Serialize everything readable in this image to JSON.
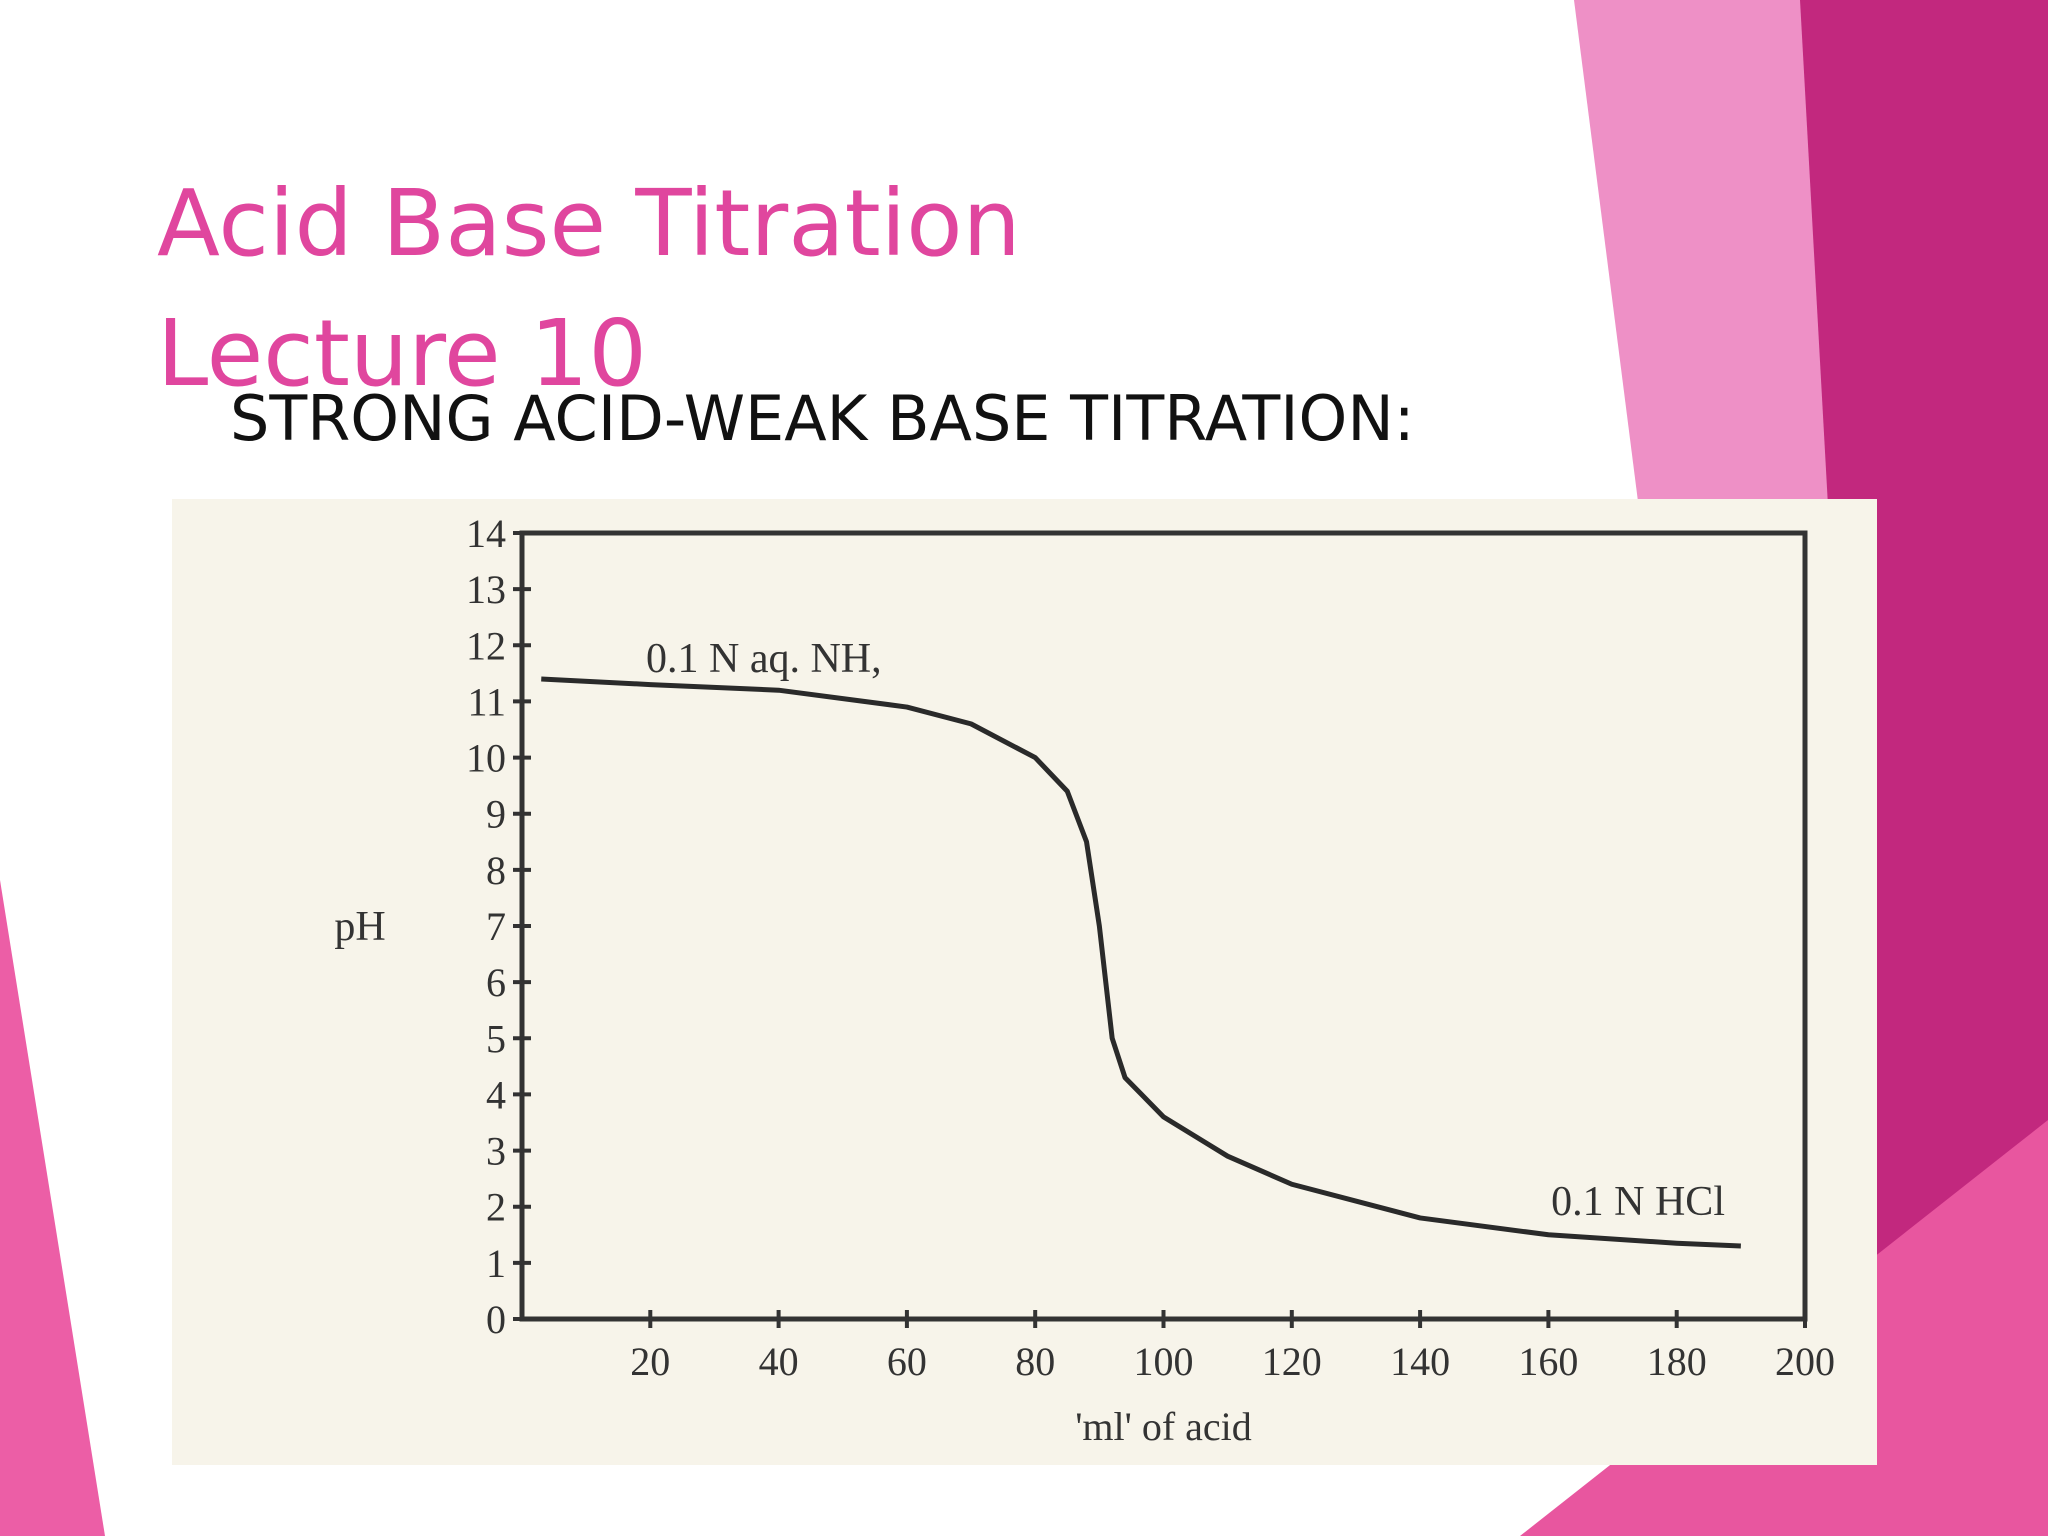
{
  "slide": {
    "title": [
      "Acid Base Titration",
      "Lecture 10"
    ],
    "subtitle": "STRONG ACID-WEAK BASE TITRATION:"
  },
  "chart_data": {
    "type": "line",
    "x_label": "'ml' of acid",
    "y_label": "pH",
    "annotations": [
      "0.1 N aq. NH,",
      "0.1 N HCl"
    ],
    "x": [
      3,
      20,
      40,
      60,
      70,
      80,
      85,
      88,
      90,
      91,
      92,
      94,
      100,
      110,
      120,
      140,
      160,
      180,
      190
    ],
    "series": [
      {
        "color": "#2a2a2a",
        "values": [
          11.4,
          11.3,
          11.2,
          10.9,
          10.6,
          10.0,
          9.4,
          8.5,
          7.0,
          6.0,
          5.0,
          4.3,
          3.6,
          2.9,
          2.4,
          1.8,
          1.5,
          1.35,
          1.3
        ]
      }
    ],
    "xlim": [
      0,
      200
    ],
    "xticks": [
      20,
      40,
      60,
      80,
      100,
      120,
      140,
      160,
      180,
      200
    ],
    "ylim": [
      0,
      14
    ],
    "yticks": [
      0,
      1,
      2,
      3,
      4,
      5,
      6,
      7,
      8,
      9,
      10,
      11,
      12,
      13,
      14
    ]
  }
}
